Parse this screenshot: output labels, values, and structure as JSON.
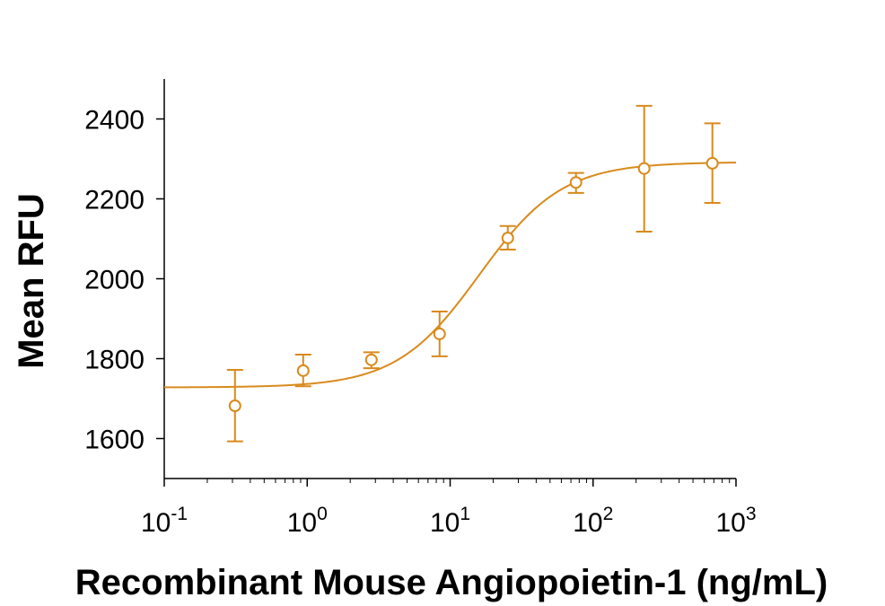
{
  "chart_data": {
    "type": "scatter",
    "title": "",
    "xlabel": "Recombinant Mouse Angiopoietin-1 (ng/mL)",
    "ylabel": "Mean RFU",
    "x_scale": "log",
    "xlim": [
      0.1,
      1000
    ],
    "ylim": [
      1500,
      2500
    ],
    "x_ticks": [
      {
        "base": "10",
        "exp": "-1"
      },
      {
        "base": "10",
        "exp": "0"
      },
      {
        "base": "10",
        "exp": "1"
      },
      {
        "base": "10",
        "exp": "2"
      },
      {
        "base": "10",
        "exp": "3"
      }
    ],
    "y_ticks": [
      "1600",
      "1800",
      "2000",
      "2200",
      "2400"
    ],
    "grid": false,
    "legend": "none",
    "series": [
      {
        "color": "#d98a1c",
        "points": [
          {
            "x": 0.3125,
            "y": 1682,
            "err_low": 1593,
            "err_high": 1772
          },
          {
            "x": 0.9375,
            "y": 1770,
            "err_low": 1731,
            "err_high": 1810
          },
          {
            "x": 2.8125,
            "y": 1797,
            "err_low": 1776,
            "err_high": 1816
          },
          {
            "x": 8.4375,
            "y": 1862,
            "err_low": 1806,
            "err_high": 1918
          },
          {
            "x": 25.3125,
            "y": 2102,
            "err_low": 2073,
            "err_high": 2132
          },
          {
            "x": 75.9375,
            "y": 2241,
            "err_low": 2215,
            "err_high": 2265
          },
          {
            "x": 227.8125,
            "y": 2276,
            "err_low": 2118,
            "err_high": 2433
          },
          {
            "x": 683.4375,
            "y": 2289,
            "err_low": 2190,
            "err_high": 2389
          }
        ],
        "fit": {
          "bottom": 1728,
          "top": 2292,
          "ec50": 16,
          "hill": 1.5
        }
      }
    ]
  }
}
